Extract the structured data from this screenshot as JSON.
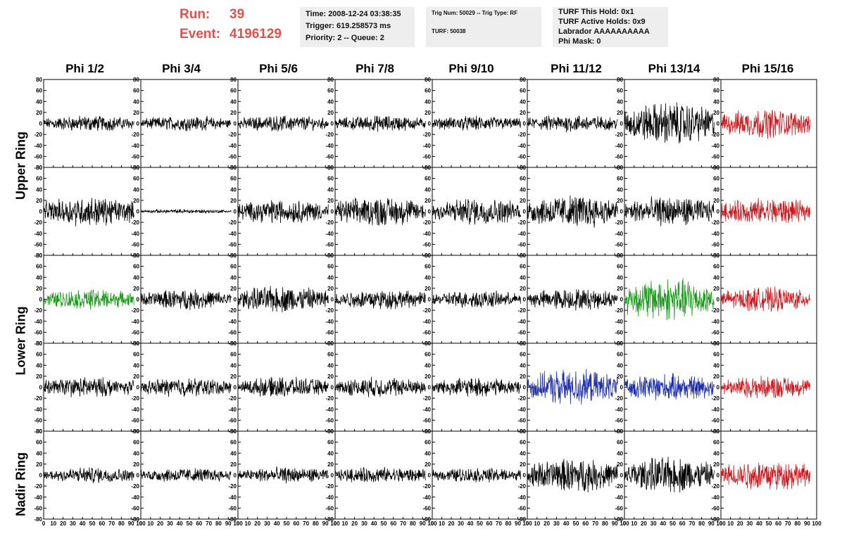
{
  "header": {
    "run_label": "Run:",
    "run_value": "39",
    "event_label": "Event:",
    "event_value": "4196129",
    "run_color": "#d9534f"
  },
  "info_boxes": {
    "time": "Time: 2008-12-24 03:38:35",
    "trigger": "Trigger: 619.258573 ms",
    "priority": "Priority: 2 -- Queue: 2",
    "trig_num": "Trig Num: 50029 -- Trig Type: RF",
    "turf": "TURF: 50038",
    "turf_this_hold": "TURF This Hold: 0x1",
    "turf_active_holds": "TURF Active Holds: 0x9",
    "labrador": "Labrador AAAAAAAAAA",
    "phi_mask": "Phi Mask: 0"
  },
  "columns": [
    "Phi 1/2",
    "Phi 3/4",
    "Phi 5/6",
    "Phi 7/8",
    "Phi 9/10",
    "Phi 11/12",
    "Phi 13/14",
    "Phi 15/16"
  ],
  "ring_labels": {
    "upper": "Upper Ring",
    "lower": "Lower Ring",
    "nadir": "Nadir Ring"
  },
  "axis": {
    "y_ticks": [
      "80",
      "60",
      "40",
      "20",
      "0",
      "-20",
      "-40",
      "-60",
      "-80"
    ],
    "x_ticks": [
      "0",
      "10",
      "20",
      "30",
      "40",
      "50",
      "60",
      "70",
      "80",
      "90",
      "100"
    ],
    "ylim": [
      -80,
      80
    ],
    "xlim": [
      0,
      100
    ]
  },
  "colors": {
    "black": "#000000",
    "red": "#c8191e",
    "green": "#1a9a1a",
    "blue": "#1f2fa8"
  },
  "panels": [
    [
      {
        "color": "black",
        "amp": 12
      },
      {
        "color": "black",
        "amp": 11
      },
      {
        "color": "black",
        "amp": 12
      },
      {
        "color": "black",
        "amp": 12
      },
      {
        "color": "black",
        "amp": 11
      },
      {
        "color": "black",
        "amp": 13
      },
      {
        "color": "black",
        "amp": 32
      },
      {
        "color": "red",
        "amp": 22
      }
    ],
    [
      {
        "color": "black",
        "amp": 22
      },
      {
        "color": "black",
        "amp": 3
      },
      {
        "color": "black",
        "amp": 18
      },
      {
        "color": "black",
        "amp": 22
      },
      {
        "color": "black",
        "amp": 20
      },
      {
        "color": "black",
        "amp": 25
      },
      {
        "color": "black",
        "amp": 22
      },
      {
        "color": "red",
        "amp": 20
      }
    ],
    [
      {
        "color": "green",
        "amp": 15
      },
      {
        "color": "black",
        "amp": 15
      },
      {
        "color": "black",
        "amp": 20
      },
      {
        "color": "black",
        "amp": 15
      },
      {
        "color": "black",
        "amp": 13
      },
      {
        "color": "black",
        "amp": 16
      },
      {
        "color": "green",
        "amp": 32
      },
      {
        "color": "red",
        "amp": 18
      }
    ],
    [
      {
        "color": "black",
        "amp": 15
      },
      {
        "color": "black",
        "amp": 14
      },
      {
        "color": "black",
        "amp": 15
      },
      {
        "color": "black",
        "amp": 15
      },
      {
        "color": "black",
        "amp": 14
      },
      {
        "color": "blue",
        "amp": 26
      },
      {
        "color": "blue",
        "amp": 20
      },
      {
        "color": "red",
        "amp": 17
      }
    ],
    [
      {
        "color": "black",
        "amp": 12
      },
      {
        "color": "black",
        "amp": 11
      },
      {
        "color": "black",
        "amp": 12
      },
      {
        "color": "black",
        "amp": 12
      },
      {
        "color": "black",
        "amp": 11
      },
      {
        "color": "black",
        "amp": 25
      },
      {
        "color": "black",
        "amp": 27
      },
      {
        "color": "red",
        "amp": 23
      }
    ]
  ]
}
